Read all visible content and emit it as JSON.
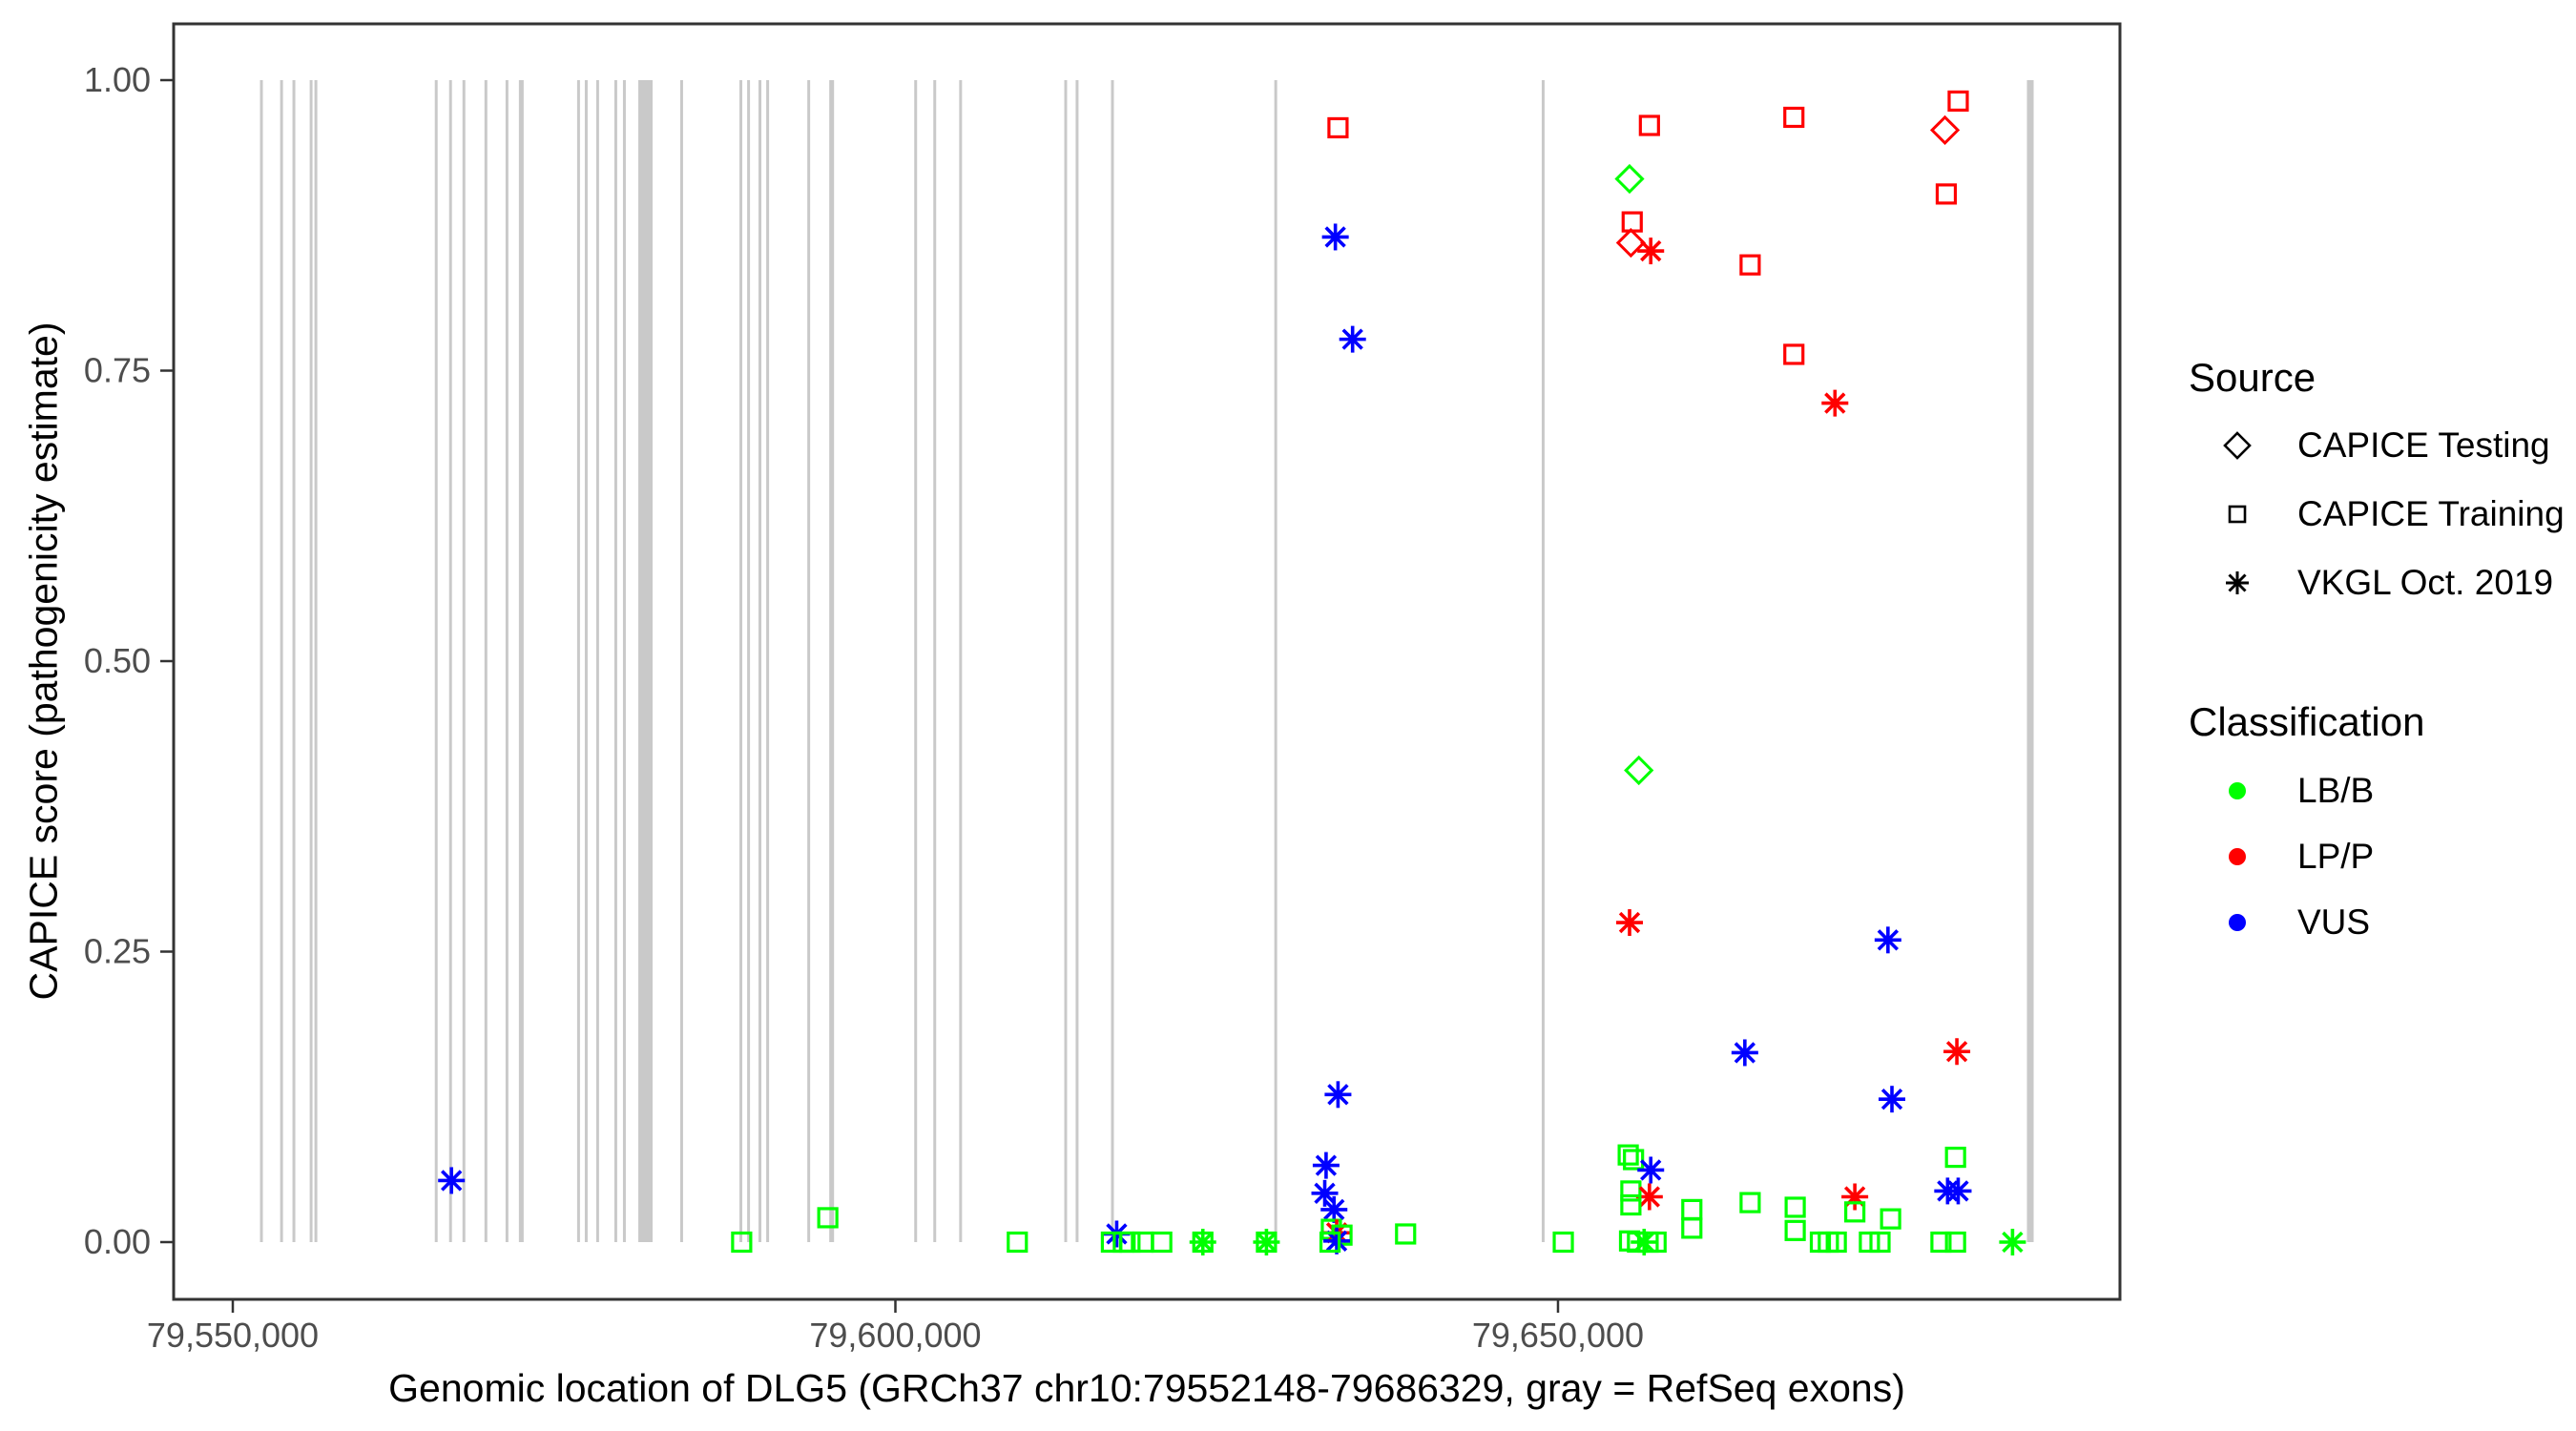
{
  "chart_data": {
    "type": "scatter",
    "title": "",
    "xlabel": "Genomic location of DLG5 (GRCh37 chr10:79552148-79686329, gray = RefSeq exons)",
    "ylabel": "CAPICE score (pathogenicity estimate)",
    "grid": "off",
    "legend_position": "right",
    "x_range_bp": [
      79545536,
      79692430
    ],
    "y_range": [
      -0.049,
      1.049
    ],
    "x_ticks": [
      {
        "bp": 79550000,
        "label": "79,550,000"
      },
      {
        "bp": 79600000,
        "label": "79,600,000"
      },
      {
        "bp": 79650000,
        "label": "79,650,000"
      }
    ],
    "y_ticks": [
      {
        "value": 0.0,
        "label": "0.00"
      },
      {
        "value": 0.25,
        "label": "0.25"
      },
      {
        "value": 0.5,
        "label": "0.50"
      },
      {
        "value": 0.75,
        "label": "0.75"
      },
      {
        "value": 1.0,
        "label": "1.00"
      }
    ],
    "legend": {
      "source_title": "Source",
      "source": [
        {
          "label": "CAPICE Testing",
          "shape": "diamond"
        },
        {
          "label": "CAPICE Training",
          "shape": "square"
        },
        {
          "label": "VKGL Oct. 2019",
          "shape": "asterisk"
        }
      ],
      "classification_title": "Classification",
      "classification": [
        {
          "label": "LB/B",
          "color": "#00FF00"
        },
        {
          "label": "LP/P",
          "color": "#FF0000"
        },
        {
          "label": "VUS",
          "color": "#0000FF"
        }
      ]
    },
    "colors": {
      "LB/B": "#00FF00",
      "LP/P": "#FF0000",
      "VUS": "#0000FF",
      "exon": "#C9C9C9",
      "axis_text": "#4D4D4D",
      "border": "#333333"
    },
    "exons_bp_center_width": [
      [
        79552160,
        215
      ],
      [
        79553680,
        215
      ],
      [
        79554610,
        215
      ],
      [
        79555910,
        215
      ],
      [
        79556270,
        215
      ],
      [
        79565350,
        215
      ],
      [
        79566430,
        215
      ],
      [
        79567440,
        215
      ],
      [
        79569100,
        215
      ],
      [
        79570690,
        215
      ],
      [
        79571770,
        360
      ],
      [
        79576090,
        215
      ],
      [
        79576670,
        215
      ],
      [
        79577530,
        215
      ],
      [
        79578900,
        215
      ],
      [
        79579550,
        215
      ],
      [
        79581140,
        1080
      ],
      [
        79583870,
        215
      ],
      [
        79588340,
        215
      ],
      [
        79588920,
        215
      ],
      [
        79589780,
        215
      ],
      [
        79590360,
        215
      ],
      [
        79593460,
        215
      ],
      [
        79595190,
        360
      ],
      [
        79601530,
        215
      ],
      [
        79602970,
        215
      ],
      [
        79604920,
        215
      ],
      [
        79612850,
        215
      ],
      [
        79613710,
        215
      ],
      [
        79616380,
        215
      ],
      [
        79628700,
        215
      ],
      [
        79648880,
        215
      ],
      [
        79685640,
        505
      ]
    ],
    "points_columns": [
      "position_bp",
      "capice_score",
      "source",
      "classification"
    ],
    "points": [
      [
        79566500,
        0.053,
        "VKGL Oct. 2019",
        "VUS"
      ],
      [
        79588400,
        0.0,
        "CAPICE Training",
        "LB/B"
      ],
      [
        79594900,
        0.021,
        "CAPICE Training",
        "LB/B"
      ],
      [
        79609200,
        0.0,
        "CAPICE Training",
        "LB/B"
      ],
      [
        79616700,
        0.007,
        "VKGL Oct. 2019",
        "VUS"
      ],
      [
        79616300,
        0.0,
        "CAPICE Training",
        "LB/B"
      ],
      [
        79617200,
        0.0,
        "CAPICE Training",
        "LB/B"
      ],
      [
        79617700,
        0.0,
        "CAPICE Training",
        "LB/B"
      ],
      [
        79618700,
        0.0,
        "CAPICE Training",
        "LB/B"
      ],
      [
        79620100,
        0.0,
        "CAPICE Training",
        "LB/B"
      ],
      [
        79623200,
        0.0,
        "CAPICE Training",
        "LB/B"
      ],
      [
        79623200,
        0.0,
        "VKGL Oct. 2019",
        "LB/B"
      ],
      [
        79628000,
        0.0,
        "CAPICE Training",
        "LB/B"
      ],
      [
        79628000,
        0.0,
        "VKGL Oct. 2019",
        "LB/B"
      ],
      [
        79633400,
        0.959,
        "CAPICE Training",
        "LP/P"
      ],
      [
        79633200,
        0.865,
        "VKGL Oct. 2019",
        "VUS"
      ],
      [
        79634500,
        0.777,
        "VKGL Oct. 2019",
        "VUS"
      ],
      [
        79633400,
        0.127,
        "VKGL Oct. 2019",
        "VUS"
      ],
      [
        79632500,
        0.066,
        "VKGL Oct. 2019",
        "VUS"
      ],
      [
        79632400,
        0.042,
        "VKGL Oct. 2019",
        "VUS"
      ],
      [
        79633100,
        0.028,
        "VKGL Oct. 2019",
        "VUS"
      ],
      [
        79632900,
        0.011,
        "CAPICE Training",
        "LB/B"
      ],
      [
        79633300,
        0.008,
        "VKGL Oct. 2019",
        "LP/P"
      ],
      [
        79633700,
        0.006,
        "CAPICE Training",
        "LB/B"
      ],
      [
        79633300,
        0.001,
        "VKGL Oct. 2019",
        "VUS"
      ],
      [
        79632800,
        0.0,
        "CAPICE Training",
        "LB/B"
      ],
      [
        79638500,
        0.007,
        "CAPICE Training",
        "LB/B"
      ],
      [
        79650400,
        0.0,
        "CAPICE Training",
        "LB/B"
      ],
      [
        79656900,
        0.961,
        "CAPICE Training",
        "LP/P"
      ],
      [
        79655400,
        0.915,
        "CAPICE Testing",
        "LB/B"
      ],
      [
        79655600,
        0.878,
        "CAPICE Training",
        "LP/P"
      ],
      [
        79655500,
        0.86,
        "CAPICE Testing",
        "LP/P"
      ],
      [
        79657000,
        0.853,
        "VKGL Oct. 2019",
        "LP/P"
      ],
      [
        79664500,
        0.841,
        "CAPICE Training",
        "LP/P"
      ],
      [
        79667800,
        0.968,
        "CAPICE Training",
        "LP/P"
      ],
      [
        79667800,
        0.764,
        "CAPICE Training",
        "LP/P"
      ],
      [
        79670900,
        0.722,
        "VKGL Oct. 2019",
        "LP/P"
      ],
      [
        79680200,
        0.982,
        "CAPICE Training",
        "LP/P"
      ],
      [
        79679200,
        0.957,
        "CAPICE Testing",
        "LP/P"
      ],
      [
        79679300,
        0.902,
        "CAPICE Training",
        "LP/P"
      ],
      [
        79656100,
        0.406,
        "CAPICE Testing",
        "LB/B"
      ],
      [
        79655400,
        0.275,
        "VKGL Oct. 2019",
        "LP/P"
      ],
      [
        79674900,
        0.26,
        "VKGL Oct. 2019",
        "VUS"
      ],
      [
        79664100,
        0.163,
        "VKGL Oct. 2019",
        "VUS"
      ],
      [
        79680100,
        0.164,
        "VKGL Oct. 2019",
        "LP/P"
      ],
      [
        79655300,
        0.075,
        "CAPICE Training",
        "LB/B"
      ],
      [
        79655700,
        0.071,
        "CAPICE Training",
        "LB/B"
      ],
      [
        79657000,
        0.062,
        "VKGL Oct. 2019",
        "VUS"
      ],
      [
        79655500,
        0.044,
        "CAPICE Training",
        "LB/B"
      ],
      [
        79656900,
        0.039,
        "VKGL Oct. 2019",
        "LP/P"
      ],
      [
        79655500,
        0.032,
        "CAPICE Training",
        "LB/B"
      ],
      [
        79655400,
        0.001,
        "CAPICE Training",
        "LB/B"
      ],
      [
        79656000,
        0.0,
        "CAPICE Training",
        "LB/B"
      ],
      [
        79656500,
        0.0,
        "VKGL Oct. 2019",
        "LB/B"
      ],
      [
        79656800,
        0.0,
        "CAPICE Training",
        "LB/B"
      ],
      [
        79657400,
        0.0,
        "CAPICE Training",
        "LB/B"
      ],
      [
        79660100,
        0.028,
        "CAPICE Training",
        "LB/B"
      ],
      [
        79660100,
        0.012,
        "CAPICE Training",
        "LB/B"
      ],
      [
        79664500,
        0.034,
        "CAPICE Training",
        "LB/B"
      ],
      [
        79667900,
        0.03,
        "CAPICE Training",
        "LB/B"
      ],
      [
        79667900,
        0.01,
        "CAPICE Training",
        "LB/B"
      ],
      [
        79669800,
        0.0,
        "CAPICE Training",
        "LB/B"
      ],
      [
        79670400,
        0.0,
        "CAPICE Training",
        "LB/B"
      ],
      [
        79671000,
        0.0,
        "CAPICE Training",
        "LB/B"
      ],
      [
        79673500,
        0.0,
        "CAPICE Training",
        "LB/B"
      ],
      [
        79674300,
        0.0,
        "CAPICE Training",
        "LB/B"
      ],
      [
        79672400,
        0.039,
        "VKGL Oct. 2019",
        "LP/P"
      ],
      [
        79672400,
        0.026,
        "CAPICE Training",
        "LB/B"
      ],
      [
        79675100,
        0.02,
        "CAPICE Training",
        "LB/B"
      ],
      [
        79675200,
        0.123,
        "VKGL Oct. 2019",
        "VUS"
      ],
      [
        79680000,
        0.073,
        "CAPICE Training",
        "LB/B"
      ],
      [
        79679400,
        0.044,
        "VKGL Oct. 2019",
        "VUS"
      ],
      [
        79680200,
        0.044,
        "VKGL Oct. 2019",
        "VUS"
      ],
      [
        79678900,
        0.0,
        "CAPICE Training",
        "LB/B"
      ],
      [
        79680000,
        0.0,
        "CAPICE Training",
        "LB/B"
      ],
      [
        79684300,
        0.0,
        "VKGL Oct. 2019",
        "LB/B"
      ]
    ]
  }
}
